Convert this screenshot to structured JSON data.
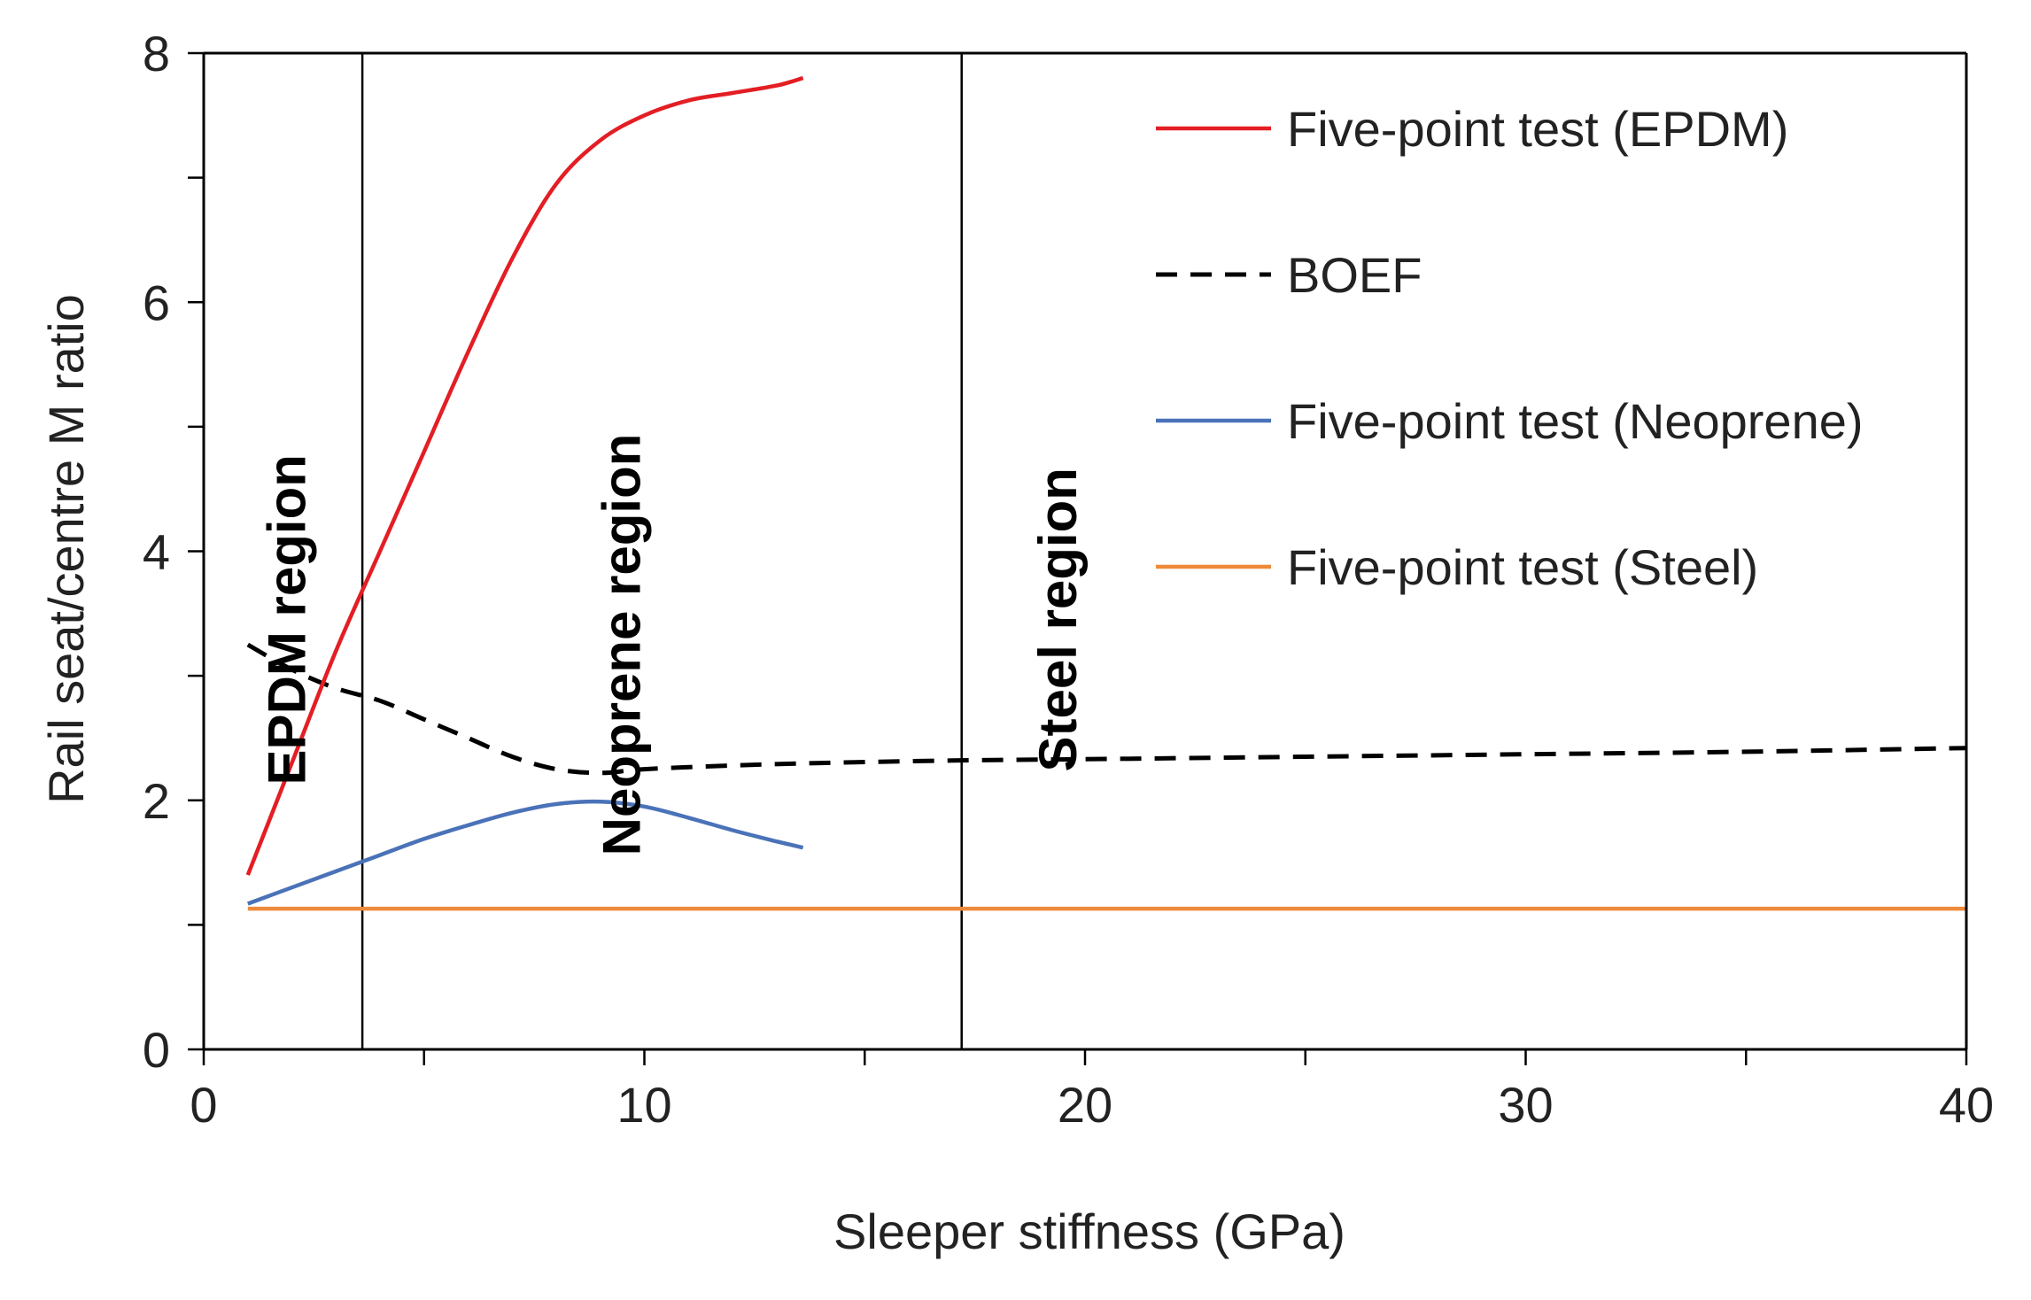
{
  "chart_data": {
    "type": "line",
    "title": "",
    "xlabel": "Sleeper stiffness (GPa)",
    "ylabel": "Rail seat/centre M ratio",
    "xlim": [
      0,
      40
    ],
    "ylim": [
      0,
      8
    ],
    "x_ticks": [
      0,
      10,
      20,
      30,
      40
    ],
    "y_ticks": [
      0,
      2,
      4,
      6,
      8
    ],
    "x_minor_step": 5,
    "y_minor_step": 1,
    "grid": false,
    "legend_position": "top-right",
    "colors": {
      "epdm": "#e31e24",
      "boef": "#000000",
      "neoprene": "#4a72b8",
      "steel": "#ee8a3a",
      "axis": "#000000"
    },
    "series": [
      {
        "key": "epdm",
        "name": "Five-point test (EPDM)",
        "style": "solid",
        "x": [
          1.0,
          2.0,
          3.0,
          4.0,
          5.0,
          6.0,
          7.0,
          8.0,
          9.0,
          10.0,
          11.0,
          12.0,
          13.0,
          13.6
        ],
        "y": [
          1.4,
          2.3,
          3.2,
          4.0,
          4.8,
          5.6,
          6.35,
          6.95,
          7.3,
          7.5,
          7.62,
          7.68,
          7.74,
          7.8
        ]
      },
      {
        "key": "boef",
        "name": "BOEF",
        "style": "dashed",
        "x": [
          1.0,
          2.0,
          3.0,
          4.0,
          5.0,
          6.0,
          7.0,
          8.0,
          9.0,
          10.0,
          12.0,
          14.0,
          17.0,
          20.0,
          25.0,
          30.0,
          35.0,
          40.0
        ],
        "y": [
          3.25,
          3.05,
          2.9,
          2.8,
          2.65,
          2.5,
          2.35,
          2.25,
          2.22,
          2.25,
          2.28,
          2.3,
          2.32,
          2.33,
          2.35,
          2.37,
          2.39,
          2.42
        ]
      },
      {
        "key": "neoprene",
        "name": "Five-point test (Neoprene)",
        "style": "solid",
        "x": [
          1.0,
          2.0,
          3.0,
          4.0,
          5.0,
          6.0,
          7.0,
          8.0,
          9.0,
          10.0,
          11.0,
          12.0,
          13.0,
          13.6
        ],
        "y": [
          1.17,
          1.3,
          1.43,
          1.56,
          1.69,
          1.8,
          1.9,
          1.97,
          1.99,
          1.95,
          1.86,
          1.76,
          1.67,
          1.62
        ]
      },
      {
        "key": "steel",
        "name": "Five-point test (Steel)",
        "style": "solid",
        "x": [
          1.0,
          40.0
        ],
        "y": [
          1.13,
          1.13
        ]
      }
    ],
    "vertical_lines": [
      3.6,
      17.2
    ],
    "region_labels": [
      {
        "text": "EPDM region",
        "x": 2.3,
        "y": 3.45
      },
      {
        "text": "Neoprene region",
        "x": 9.9,
        "y": 3.25
      },
      {
        "text": "Steel region",
        "x": 19.8,
        "y": 3.45
      }
    ]
  }
}
